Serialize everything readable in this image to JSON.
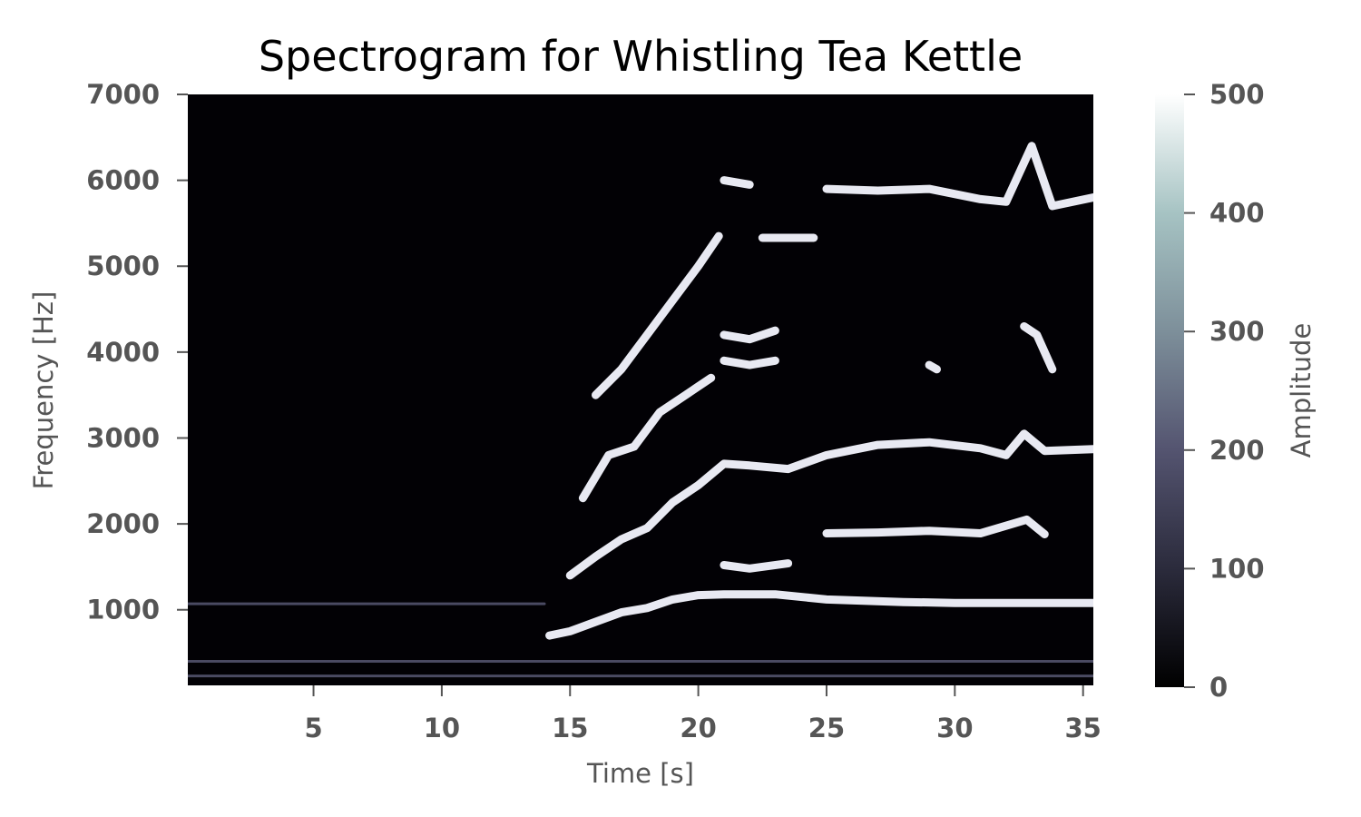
{
  "chart_data": {
    "type": "heatmap",
    "title": "Spectrogram for Whistling Tea Kettle",
    "xlabel": "Time [s]",
    "ylabel": "Frequency [Hz]",
    "xlim": [
      0.1,
      35.4
    ],
    "ylim": [
      120,
      7000
    ],
    "x_ticks": [
      5,
      10,
      15,
      20,
      25,
      30,
      35
    ],
    "y_ticks": [
      1000,
      2000,
      3000,
      4000,
      5000,
      6000,
      7000
    ],
    "grid": false,
    "colormap": "bone",
    "colormap_stops": [
      "#000000",
      "#2b2b3c",
      "#545470",
      "#7d8f9a",
      "#a6c3c3",
      "#ffffff"
    ],
    "background_color": "#020105",
    "colorbar": {
      "label": "Amplitude",
      "range": [
        0,
        500
      ],
      "ticks": [
        0,
        100,
        200,
        300,
        400,
        500
      ]
    },
    "series": [
      {
        "values": [
          [
            14.2,
            700
          ],
          [
            15.0,
            750
          ],
          [
            16.0,
            860
          ],
          [
            17.0,
            970
          ],
          [
            18.0,
            1020
          ],
          [
            19.0,
            1120
          ],
          [
            20.0,
            1170
          ],
          [
            21.0,
            1180
          ],
          [
            23.0,
            1180
          ],
          [
            25.0,
            1120
          ],
          [
            28.0,
            1090
          ],
          [
            30.0,
            1080
          ],
          [
            33.0,
            1080
          ],
          [
            35.4,
            1080
          ]
        ]
      },
      {
        "values": [
          [
            15.0,
            1400
          ],
          [
            16.0,
            1620
          ],
          [
            17.0,
            1820
          ],
          [
            18.0,
            1950
          ],
          [
            19.0,
            2250
          ],
          [
            20.0,
            2450
          ],
          [
            21.0,
            2700
          ],
          [
            22.0,
            2680
          ],
          [
            23.5,
            2640
          ],
          [
            25.0,
            2800
          ],
          [
            27.0,
            2920
          ],
          [
            29.0,
            2950
          ],
          [
            31.0,
            2880
          ],
          [
            32.0,
            2800
          ],
          [
            32.7,
            3050
          ],
          [
            33.5,
            2850
          ],
          [
            35.4,
            2870
          ]
        ]
      },
      {
        "values": [
          [
            15.5,
            2300
          ],
          [
            16.5,
            2800
          ],
          [
            17.5,
            2900
          ],
          [
            18.5,
            3300
          ],
          [
            19.5,
            3500
          ],
          [
            20.5,
            3700
          ]
        ]
      },
      {
        "values": [
          [
            16.0,
            3500
          ],
          [
            17.0,
            3800
          ],
          [
            18.0,
            4200
          ],
          [
            19.0,
            4600
          ],
          [
            20.0,
            5000
          ],
          [
            20.8,
            5350
          ]
        ]
      },
      {
        "values": [
          [
            21.0,
            1520
          ],
          [
            22.0,
            1480
          ],
          [
            23.5,
            1540
          ]
        ]
      },
      {
        "values": [
          [
            25.0,
            1890
          ],
          [
            27.0,
            1900
          ],
          [
            29.0,
            1920
          ],
          [
            31.0,
            1890
          ],
          [
            32.8,
            2050
          ],
          [
            33.5,
            1880
          ]
        ]
      },
      {
        "values": [
          [
            21.0,
            4200
          ],
          [
            22.0,
            4150
          ],
          [
            23.0,
            4250
          ]
        ]
      },
      {
        "values": [
          [
            21.0,
            3900
          ],
          [
            22.0,
            3850
          ],
          [
            23.0,
            3900
          ]
        ]
      },
      {
        "values": [
          [
            22.5,
            5330
          ],
          [
            24.5,
            5330
          ]
        ]
      },
      {
        "values": [
          [
            25.0,
            5900
          ],
          [
            27.0,
            5880
          ],
          [
            29.0,
            5900
          ],
          [
            31.0,
            5780
          ],
          [
            32.0,
            5750
          ],
          [
            33.0,
            6400
          ],
          [
            33.8,
            5700
          ],
          [
            35.4,
            5800
          ]
        ]
      },
      {
        "values": [
          [
            32.7,
            4300
          ],
          [
            33.2,
            4200
          ],
          [
            33.8,
            3800
          ]
        ]
      },
      {
        "values": [
          [
            29.0,
            3850
          ],
          [
            29.3,
            3800
          ]
        ]
      },
      {
        "values": [
          [
            21.0,
            6000
          ],
          [
            22.0,
            5950
          ]
        ]
      },
      {
        "values": [
          [
            0.1,
            1070
          ],
          [
            14.0,
            1070
          ]
        ]
      },
      {
        "values": [
          [
            0.1,
            400
          ],
          [
            35.4,
            400
          ]
        ]
      },
      {
        "values": [
          [
            0.1,
            230
          ],
          [
            35.4,
            230
          ]
        ]
      }
    ]
  }
}
